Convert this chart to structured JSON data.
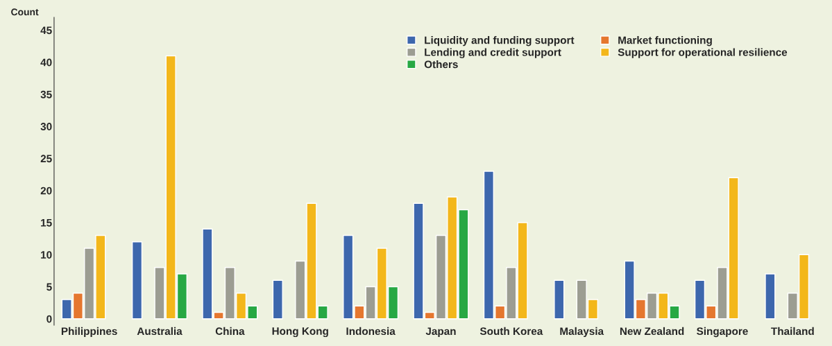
{
  "chart_data": {
    "type": "bar",
    "ylabel": "Count",
    "categories": [
      "Philippines",
      "Australia",
      "China",
      "Hong Kong",
      "Indonesia",
      "Japan",
      "South Korea",
      "Malaysia",
      "New Zealand",
      "Singapore",
      "Thailand"
    ],
    "series": [
      {
        "name": "Liquidity and funding support",
        "color": "#3d67ad",
        "values": [
          3,
          12,
          14,
          6,
          13,
          18,
          23,
          6,
          9,
          6,
          7
        ]
      },
      {
        "name": "Market functioning",
        "color": "#e5772f",
        "values": [
          4,
          null,
          1,
          null,
          2,
          1,
          2,
          null,
          3,
          2,
          null
        ]
      },
      {
        "name": "Lending and credit support",
        "color": "#9c9d92",
        "values": [
          11,
          8,
          8,
          9,
          5,
          13,
          8,
          6,
          4,
          8,
          4
        ]
      },
      {
        "name": "Support for operational resilience",
        "color": "#f3b71b",
        "values": [
          13,
          41,
          4,
          18,
          11,
          19,
          15,
          3,
          4,
          22,
          10
        ]
      },
      {
        "name": "Others",
        "color": "#27a844",
        "values": [
          null,
          7,
          2,
          2,
          5,
          17,
          null,
          null,
          2,
          null,
          null
        ]
      }
    ],
    "ylim": [
      -1,
      47
    ],
    "yticks": [
      0,
      5,
      10,
      15,
      20,
      25,
      30,
      35,
      40,
      45
    ],
    "grid": false,
    "legend": "top right"
  }
}
